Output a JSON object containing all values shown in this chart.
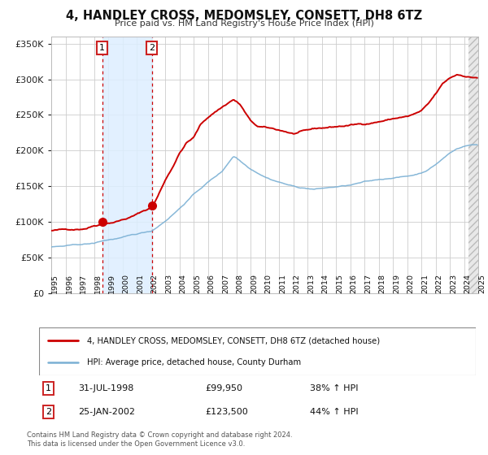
{
  "title": "4, HANDLEY CROSS, MEDOMSLEY, CONSETT, DH8 6TZ",
  "subtitle": "Price paid vs. HM Land Registry's House Price Index (HPI)",
  "legend_line1": "4, HANDLEY CROSS, MEDOMSLEY, CONSETT, DH8 6TZ (detached house)",
  "legend_line2": "HPI: Average price, detached house, County Durham",
  "purchase1_date": "31-JUL-1998",
  "purchase1_price": 99950,
  "purchase1_hpi": "38% ↑ HPI",
  "purchase2_date": "25-JAN-2002",
  "purchase2_price": 123500,
  "purchase2_hpi": "44% ↑ HPI",
  "footer1": "Contains HM Land Registry data © Crown copyright and database right 2024.",
  "footer2": "This data is licensed under the Open Government Licence v3.0.",
  "red_color": "#cc0000",
  "blue_color": "#7ab0d4",
  "bg_color": "#ffffff",
  "grid_color": "#cccccc",
  "purchase1_year": 1998.58,
  "purchase2_year": 2002.07,
  "ylim": [
    0,
    360000
  ],
  "xlim_start": 1995,
  "xlim_end": 2025,
  "prop_waypoints_x": [
    1995.0,
    1996.0,
    1997.0,
    1997.5,
    1998.0,
    1998.58,
    1999.0,
    1999.5,
    2000.0,
    2000.5,
    2001.0,
    2001.5,
    2002.07,
    2002.5,
    2003.0,
    2003.5,
    2004.0,
    2004.5,
    2005.0,
    2005.5,
    2006.0,
    2006.5,
    2007.0,
    2007.5,
    2007.8,
    2008.0,
    2008.3,
    2008.6,
    2009.0,
    2009.5,
    2010.0,
    2010.5,
    2011.0,
    2011.5,
    2012.0,
    2012.5,
    2013.0,
    2013.5,
    2014.0,
    2014.5,
    2015.0,
    2015.5,
    2016.0,
    2016.5,
    2017.0,
    2017.5,
    2018.0,
    2018.5,
    2019.0,
    2019.5,
    2020.0,
    2020.5,
    2021.0,
    2021.5,
    2022.0,
    2022.5,
    2023.0,
    2023.5,
    2024.0,
    2024.5
  ],
  "prop_waypoints_y": [
    88000,
    89000,
    91000,
    93000,
    97000,
    99950,
    102000,
    104000,
    107000,
    110000,
    114000,
    119000,
    123500,
    140000,
    162000,
    180000,
    200000,
    215000,
    222000,
    240000,
    250000,
    258000,
    265000,
    272000,
    276000,
    273000,
    268000,
    258000,
    245000,
    237000,
    235000,
    233000,
    231000,
    229000,
    226000,
    228000,
    229000,
    231000,
    232000,
    233000,
    234000,
    235000,
    236000,
    237000,
    238000,
    240000,
    242000,
    244000,
    246000,
    248000,
    249000,
    252000,
    256000,
    265000,
    278000,
    292000,
    300000,
    305000,
    304000,
    302000
  ],
  "hpi_waypoints_x": [
    1995.0,
    1996.0,
    1997.0,
    1998.0,
    1998.58,
    1999.0,
    2000.0,
    2001.0,
    2002.07,
    2003.0,
    2004.0,
    2005.0,
    2006.0,
    2007.0,
    2007.8,
    2008.0,
    2008.5,
    2009.0,
    2009.5,
    2010.0,
    2010.5,
    2011.0,
    2011.5,
    2012.0,
    2012.5,
    2013.0,
    2013.5,
    2014.0,
    2014.5,
    2015.0,
    2015.5,
    2016.0,
    2016.5,
    2017.0,
    2017.5,
    2018.0,
    2018.5,
    2019.0,
    2019.5,
    2020.0,
    2020.5,
    2021.0,
    2021.5,
    2022.0,
    2022.5,
    2023.0,
    2023.5,
    2024.0,
    2024.5
  ],
  "hpi_waypoints_y": [
    65000,
    66000,
    67500,
    69000,
    72500,
    74000,
    77000,
    81000,
    85800,
    100000,
    118000,
    138000,
    155000,
    170000,
    192000,
    190000,
    182000,
    175000,
    170000,
    165000,
    161000,
    158000,
    155000,
    152000,
    150000,
    149000,
    148000,
    149000,
    150000,
    151000,
    152000,
    153000,
    155000,
    157000,
    158000,
    160000,
    161000,
    163000,
    164000,
    165000,
    167000,
    170000,
    175000,
    182000,
    190000,
    198000,
    204000,
    208000,
    210000
  ]
}
